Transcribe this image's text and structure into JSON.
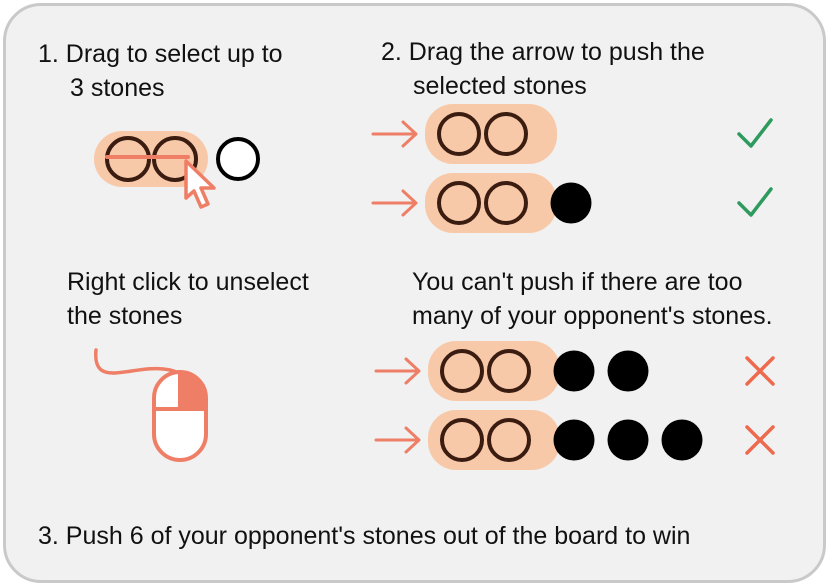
{
  "instructions": {
    "step1": {
      "line1": "1. Drag to select up to",
      "line2": "3 stones"
    },
    "step2": {
      "line1": "2. Drag the arrow to push the",
      "line2": "selected stones"
    },
    "unselect": {
      "line1": "Right click to unselect",
      "line2": "the stones"
    },
    "too_many": {
      "line1": "You can't push if there are too",
      "line2": "many of your opponent's stones."
    },
    "step3": {
      "line1": "3. Push 6 of your opponent's stones out of the board to win"
    }
  },
  "examples": [
    {
      "own_stones": 2,
      "opponent_stones": 0,
      "result": "check-icon"
    },
    {
      "own_stones": 2,
      "opponent_stones": 1,
      "result": "check-icon"
    },
    {
      "own_stones": 2,
      "opponent_stones": 2,
      "result": "cross-icon"
    },
    {
      "own_stones": 2,
      "opponent_stones": 3,
      "result": "cross-icon"
    }
  ],
  "colors": {
    "panel_background": "#f1f1f1",
    "panel_border": "#c9c9c9",
    "selection_fill": "#f8c9a8",
    "accent": "#ee7f66",
    "stone_outline": "#3a1c10",
    "opponent_stone": "#000000",
    "valid": "#2e9a5e",
    "invalid": "#ee6a4e"
  }
}
